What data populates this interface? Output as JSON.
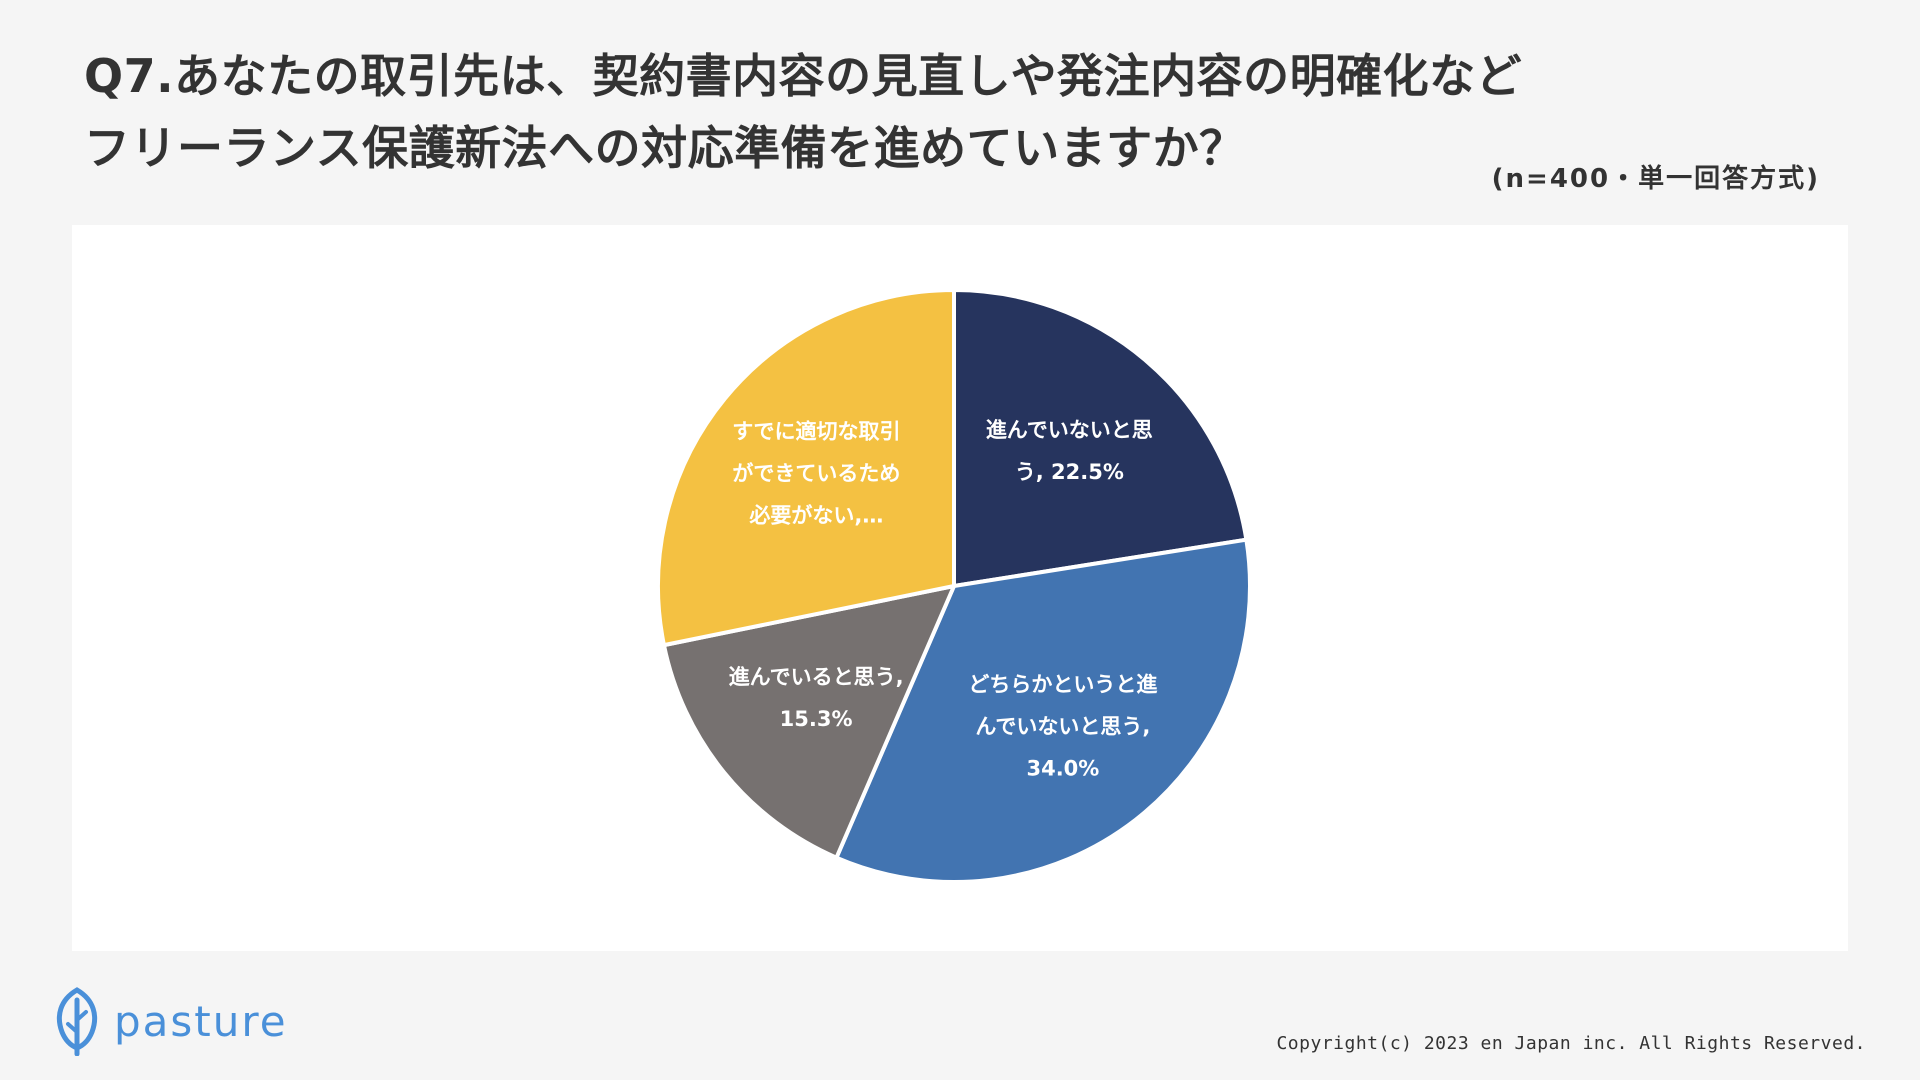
{
  "title": {
    "line1": "Q7.あなたの取引先は、契約書内容の見直しや発注内容の明確化など",
    "line2": "フリーランス保護新法への対応準備を進めていますか？"
  },
  "sample_note": "(n=400・単一回答方式)",
  "chart_data": {
    "type": "pie",
    "title": "",
    "slices": [
      {
        "label": "進んでいないと思う",
        "value": 22.5,
        "color": "#26345e",
        "label_lines": [
          "進んでいないと思",
          "う, 22.5%"
        ]
      },
      {
        "label": "どちらかというと進んでいないと思う",
        "value": 34.0,
        "color": "#4274b1",
        "label_lines": [
          "どちらかというと進",
          "んでいないと思う,",
          "34.0%"
        ]
      },
      {
        "label": "進んでいると思う",
        "value": 15.3,
        "color": "#767170",
        "label_lines": [
          "進んでいると思う,",
          "15.3%"
        ]
      },
      {
        "label": "すでに適切な取引ができているため必要がない",
        "value": 28.2,
        "color": "#f4c142",
        "label_lines": [
          "すでに適切な取引",
          "ができているため",
          "必要がない,…"
        ]
      }
    ],
    "start_angle": "12 o'clock",
    "direction": "clockwise",
    "legend": "none"
  },
  "brand": {
    "logo_text": "pasture",
    "logo_icon": "leaf-icon",
    "color": "#4a90d9"
  },
  "copyright": "Copyright(c) 2023 en Japan inc. All Rights Reserved."
}
